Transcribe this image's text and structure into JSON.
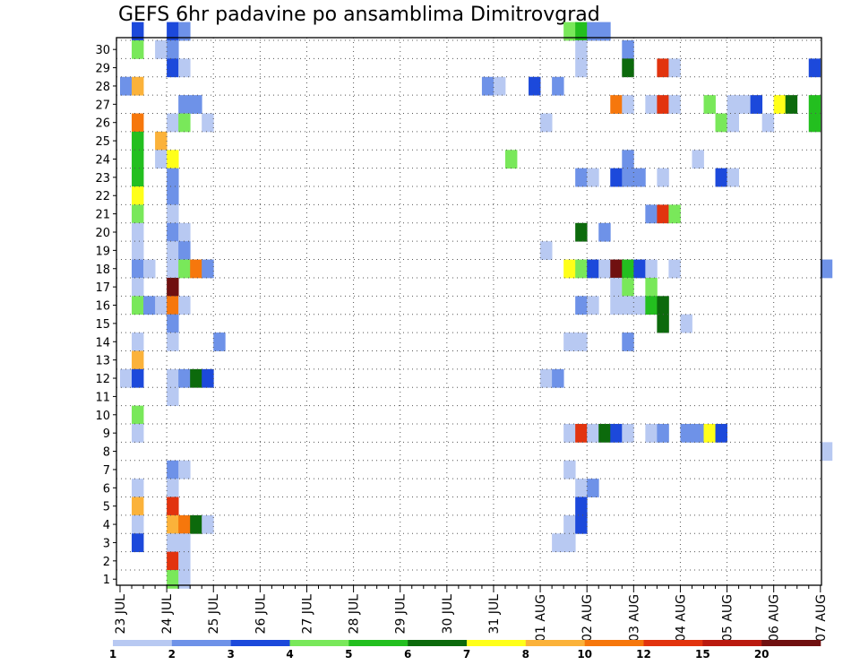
{
  "chart_data": {
    "type": "heatmap",
    "title": "GEFS 6hr padavine po ansamblima Dimitrovgrad",
    "xlabel": "",
    "ylabel": "",
    "x_tick_labels": [
      "23 JUL",
      "24 JUL",
      "25 JUL",
      "26 JUL",
      "27 JUL",
      "28 JUL",
      "29 JUL",
      "30 JUL",
      "31 JUL",
      "01 AUG",
      "02 AUG",
      "03 AUG",
      "04 AUG",
      "05 AUG",
      "06 AUG",
      "07 AUG"
    ],
    "x_range_steps": [
      0,
      60
    ],
    "steps_per_day": 4,
    "y_tick_labels": [
      "1",
      "2",
      "3",
      "4",
      "5",
      "6",
      "7",
      "8",
      "9",
      "10",
      "11",
      "12",
      "13",
      "14",
      "15",
      "16",
      "17",
      "18",
      "19",
      "20",
      "21",
      "22",
      "23",
      "24",
      "25",
      "26",
      "27",
      "28",
      "29",
      "30"
    ],
    "y_range": [
      0,
      30
    ],
    "grid": true,
    "legend": {
      "placement": "bottom",
      "bounds": [
        "1",
        "2",
        "3",
        "4",
        "5",
        "6",
        "7",
        "8",
        "10",
        "12",
        "15",
        "20"
      ],
      "colors": [
        "#b8c9f2",
        "#6e92e8",
        "#1c49db",
        "#79e85a",
        "#23bf1f",
        "#0c6a0c",
        "#ffff19",
        "#fbb23a",
        "#f6770c",
        "#e2330e",
        "#ba1a0f",
        "#701010"
      ]
    },
    "cells": [
      [
        1,
        30,
        2
      ],
      [
        4,
        30,
        2
      ],
      [
        5,
        30,
        1
      ],
      [
        38,
        30,
        3
      ],
      [
        39,
        30,
        4
      ],
      [
        40,
        30,
        1
      ],
      [
        41,
        30,
        1
      ],
      [
        1,
        29,
        3
      ],
      [
        3,
        29,
        0
      ],
      [
        4,
        29,
        1
      ],
      [
        39,
        29,
        0
      ],
      [
        43,
        29,
        1
      ],
      [
        4,
        28,
        2
      ],
      [
        5,
        28,
        0
      ],
      [
        39,
        28,
        0
      ],
      [
        43,
        28,
        5
      ],
      [
        46,
        28,
        9
      ],
      [
        47,
        28,
        0
      ],
      [
        59,
        28,
        2
      ],
      [
        0,
        27,
        1
      ],
      [
        1,
        27,
        7
      ],
      [
        31,
        27,
        1
      ],
      [
        32,
        27,
        0
      ],
      [
        35,
        27,
        2
      ],
      [
        37,
        27,
        1
      ],
      [
        5,
        26,
        1
      ],
      [
        6,
        26,
        1
      ],
      [
        42,
        26,
        8
      ],
      [
        43,
        26,
        0
      ],
      [
        45,
        26,
        0
      ],
      [
        46,
        26,
        9
      ],
      [
        47,
        26,
        0
      ],
      [
        50,
        26,
        3
      ],
      [
        52,
        26,
        0
      ],
      [
        53,
        26,
        0
      ],
      [
        54,
        26,
        2
      ],
      [
        56,
        26,
        6
      ],
      [
        57,
        26,
        5
      ],
      [
        59,
        26,
        4
      ],
      [
        1,
        25,
        8
      ],
      [
        4,
        25,
        0
      ],
      [
        5,
        25,
        3
      ],
      [
        7,
        25,
        0
      ],
      [
        36,
        25,
        0
      ],
      [
        51,
        25,
        3
      ],
      [
        52,
        25,
        0
      ],
      [
        55,
        25,
        0
      ],
      [
        59,
        25,
        4
      ],
      [
        1,
        24,
        4
      ],
      [
        3,
        24,
        7
      ],
      [
        1,
        23,
        4
      ],
      [
        3,
        23,
        0
      ],
      [
        4,
        23,
        6
      ],
      [
        33,
        23,
        3
      ],
      [
        43,
        23,
        1
      ],
      [
        49,
        23,
        0
      ],
      [
        1,
        22,
        4
      ],
      [
        4,
        22,
        1
      ],
      [
        39,
        22,
        1
      ],
      [
        40,
        22,
        0
      ],
      [
        42,
        22,
        2
      ],
      [
        43,
        22,
        1
      ],
      [
        44,
        22,
        1
      ],
      [
        46,
        22,
        0
      ],
      [
        51,
        22,
        2
      ],
      [
        52,
        22,
        0
      ],
      [
        1,
        21,
        6
      ],
      [
        4,
        21,
        1
      ],
      [
        1,
        20,
        3
      ],
      [
        4,
        20,
        0
      ],
      [
        45,
        20,
        1
      ],
      [
        46,
        20,
        9
      ],
      [
        47,
        20,
        3
      ],
      [
        1,
        19,
        0
      ],
      [
        4,
        19,
        1
      ],
      [
        5,
        19,
        0
      ],
      [
        39,
        19,
        5
      ],
      [
        41,
        19,
        1
      ],
      [
        1,
        18,
        0
      ],
      [
        4,
        18,
        0
      ],
      [
        5,
        18,
        1
      ],
      [
        36,
        18,
        0
      ],
      [
        1,
        17,
        1
      ],
      [
        2,
        17,
        0
      ],
      [
        4,
        17,
        0
      ],
      [
        5,
        17,
        3
      ],
      [
        6,
        17,
        8
      ],
      [
        7,
        17,
        1
      ],
      [
        38,
        17,
        6
      ],
      [
        39,
        17,
        3
      ],
      [
        40,
        17,
        2
      ],
      [
        41,
        17,
        0
      ],
      [
        42,
        17,
        11
      ],
      [
        43,
        17,
        4
      ],
      [
        44,
        17,
        2
      ],
      [
        45,
        17,
        0
      ],
      [
        47,
        17,
        0
      ],
      [
        60,
        17,
        1
      ],
      [
        1,
        16,
        0
      ],
      [
        4,
        16,
        11
      ],
      [
        42,
        16,
        0
      ],
      [
        43,
        16,
        3
      ],
      [
        45,
        16,
        3
      ],
      [
        1,
        15,
        3
      ],
      [
        2,
        15,
        1
      ],
      [
        3,
        15,
        0
      ],
      [
        4,
        15,
        8
      ],
      [
        5,
        15,
        0
      ],
      [
        39,
        15,
        1
      ],
      [
        40,
        15,
        0
      ],
      [
        42,
        15,
        0
      ],
      [
        43,
        15,
        0
      ],
      [
        44,
        15,
        0
      ],
      [
        45,
        15,
        4
      ],
      [
        46,
        15,
        5
      ],
      [
        4,
        14,
        1
      ],
      [
        46,
        14,
        5
      ],
      [
        48,
        14,
        0
      ],
      [
        1,
        13,
        0
      ],
      [
        4,
        13,
        0
      ],
      [
        8,
        13,
        1
      ],
      [
        38,
        13,
        0
      ],
      [
        39,
        13,
        0
      ],
      [
        43,
        13,
        1
      ],
      [
        1,
        12,
        7
      ],
      [
        0,
        11,
        0
      ],
      [
        1,
        11,
        2
      ],
      [
        4,
        11,
        0
      ],
      [
        5,
        11,
        1
      ],
      [
        6,
        11,
        5
      ],
      [
        7,
        11,
        2
      ],
      [
        36,
        11,
        0
      ],
      [
        37,
        11,
        1
      ],
      [
        4,
        10,
        0
      ],
      [
        1,
        9,
        3
      ],
      [
        1,
        8,
        0
      ],
      [
        38,
        8,
        0
      ],
      [
        39,
        8,
        9
      ],
      [
        40,
        8,
        0
      ],
      [
        41,
        8,
        5
      ],
      [
        42,
        8,
        2
      ],
      [
        43,
        8,
        0
      ],
      [
        45,
        8,
        0
      ],
      [
        46,
        8,
        1
      ],
      [
        48,
        8,
        1
      ],
      [
        49,
        8,
        1
      ],
      [
        50,
        8,
        6
      ],
      [
        51,
        8,
        2
      ],
      [
        60,
        7,
        0
      ],
      [
        4,
        6,
        1
      ],
      [
        5,
        6,
        0
      ],
      [
        38,
        6,
        0
      ],
      [
        1,
        5,
        0
      ],
      [
        4,
        5,
        0
      ],
      [
        39,
        5,
        0
      ],
      [
        40,
        5,
        1
      ],
      [
        1,
        4,
        7
      ],
      [
        4,
        4,
        9
      ],
      [
        39,
        4,
        2
      ],
      [
        1,
        3,
        0
      ],
      [
        4,
        3,
        7
      ],
      [
        5,
        3,
        8
      ],
      [
        6,
        3,
        5
      ],
      [
        7,
        3,
        0
      ],
      [
        38,
        3,
        0
      ],
      [
        39,
        3,
        2
      ],
      [
        1,
        2,
        2
      ],
      [
        4,
        2,
        0
      ],
      [
        5,
        2,
        0
      ],
      [
        37,
        2,
        0
      ],
      [
        38,
        2,
        0
      ],
      [
        4,
        1,
        9
      ],
      [
        5,
        1,
        0
      ],
      [
        4,
        0,
        3
      ],
      [
        5,
        0,
        0
      ]
    ]
  }
}
